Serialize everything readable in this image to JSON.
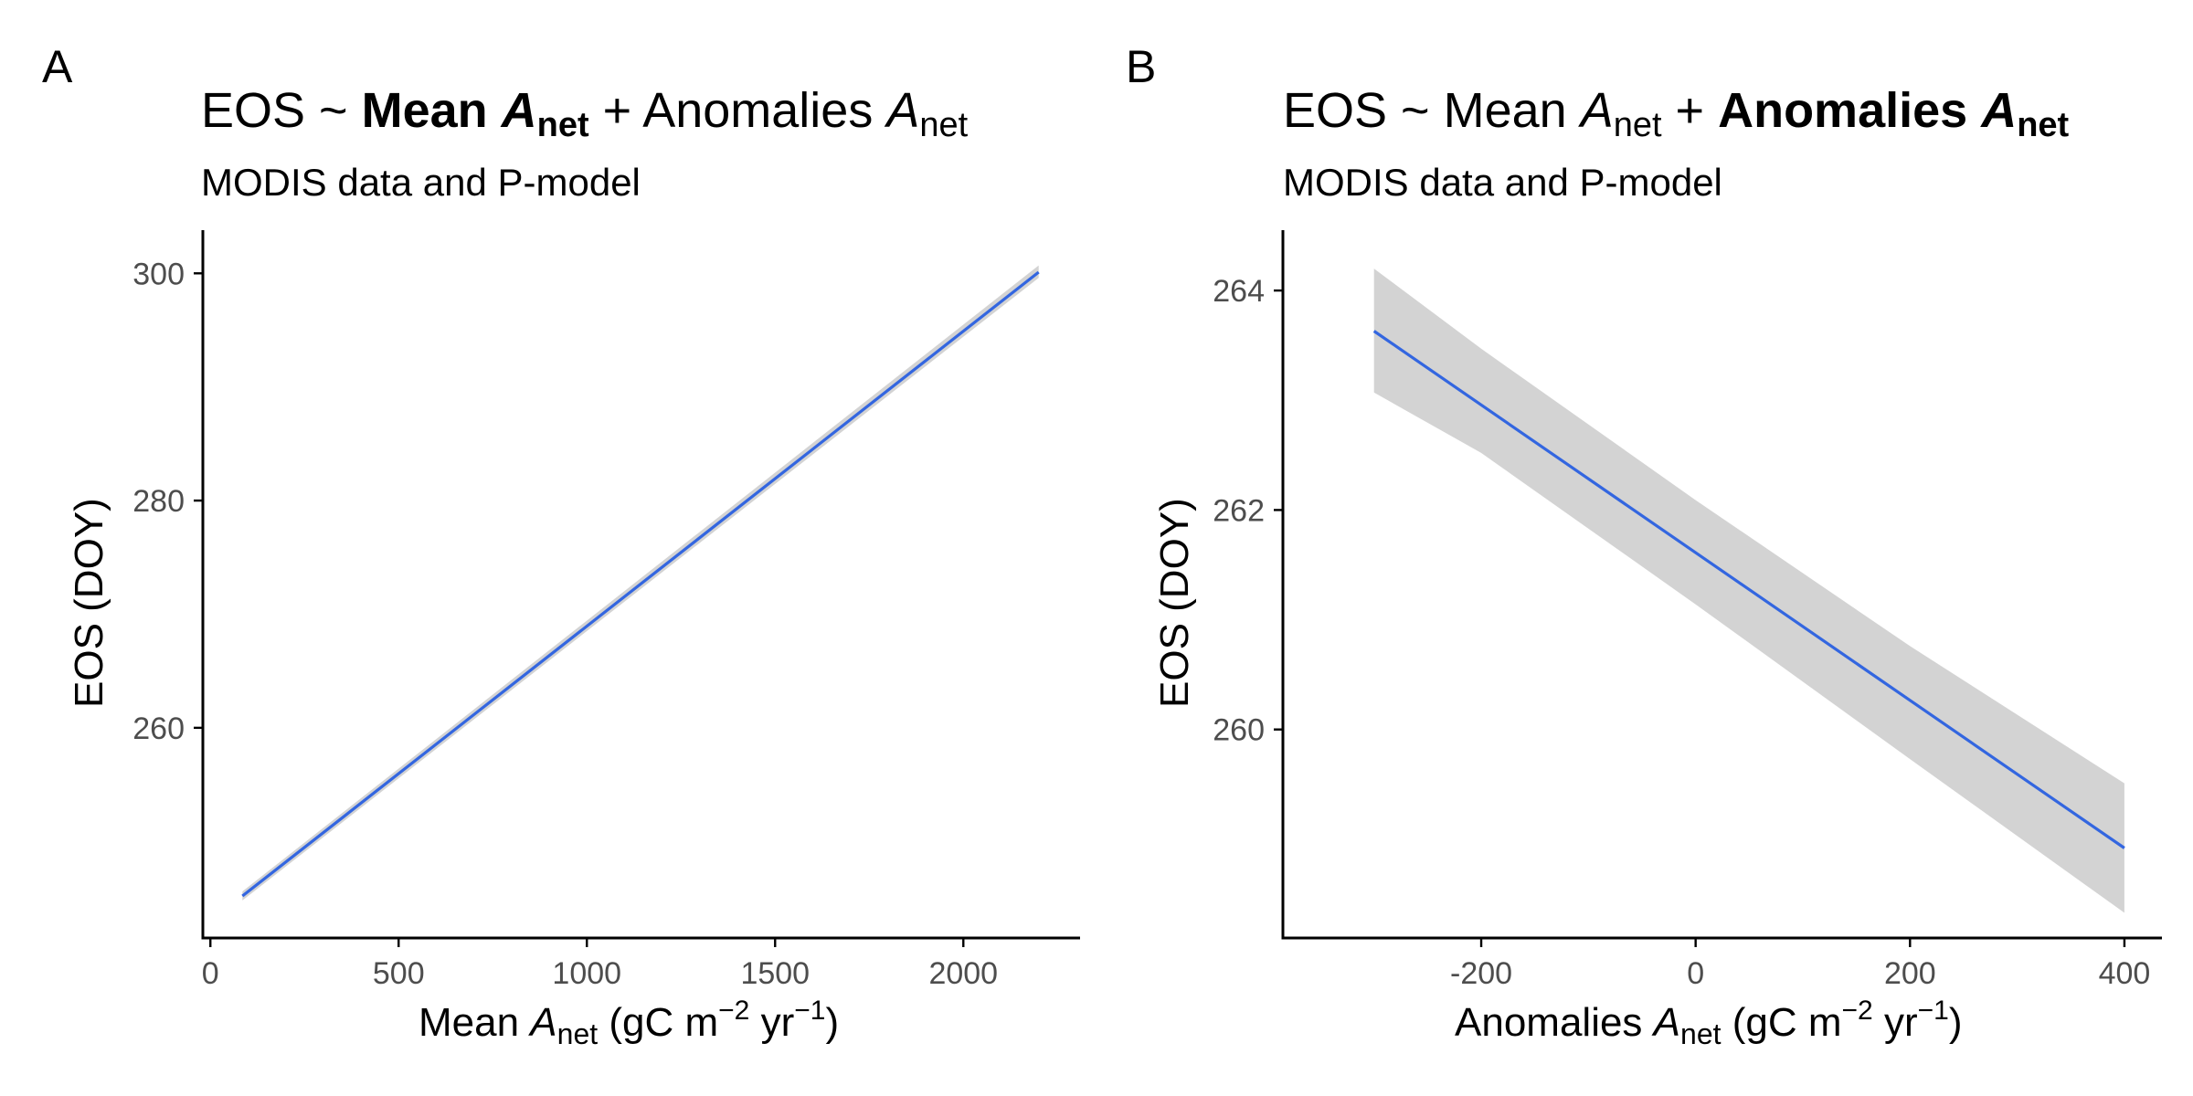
{
  "colors": {
    "line": "#3366e0",
    "ribbon": "#d3d3d3",
    "axis": "#000000",
    "tick_text": "#4d4d4d"
  },
  "panels": [
    {
      "tag": "A",
      "title": {
        "prefix": "EOS ~ ",
        "t1_word": "Mean ",
        "t1_var": "A",
        "t1_sub": "net",
        "plus": " + ",
        "t2_word": "Anomalies ",
        "t2_var": "A",
        "t2_sub": "net",
        "bold_term": 1
      },
      "subtitle": "MODIS data and P-model",
      "xlabel": {
        "pre": "Mean ",
        "var": "A",
        "sub": "net",
        "unit_a": " (gC m",
        "exp1": "−2",
        "unit_b": " yr",
        "exp2": "−1",
        "unit_c": ")"
      },
      "ylabel": "EOS (DOY)"
    },
    {
      "tag": "B",
      "title": {
        "prefix": "EOS ~ ",
        "t1_word": "Mean ",
        "t1_var": "A",
        "t1_sub": "net",
        "plus": " + ",
        "t2_word": "Anomalies ",
        "t2_var": "A",
        "t2_sub": "net",
        "bold_term": 2
      },
      "subtitle": "MODIS data and P-model",
      "xlabel": {
        "pre": "Anomalies ",
        "var": "A",
        "sub": "net",
        "unit_a": " (gC m",
        "exp1": "−2",
        "unit_b": " yr",
        "exp2": "−1",
        "unit_c": ")"
      },
      "ylabel": "EOS (DOY)"
    }
  ],
  "chart_data": [
    {
      "type": "line",
      "series": [
        {
          "x": [
            85,
            2200
          ],
          "y": [
            245.2,
            300.1
          ]
        }
      ],
      "ribbon": {
        "x": [
          85,
          2200
        ],
        "lower": [
          244.8,
          299.6
        ],
        "upper": [
          245.6,
          300.7
        ]
      },
      "xlim": [
        -20,
        2310
      ],
      "ylim": [
        241.5,
        303.8
      ],
      "xticks": [
        0,
        500,
        1000,
        1500,
        2000
      ],
      "xtick_labels": [
        "0",
        "500",
        "1000",
        "1500",
        "2000"
      ],
      "yticks": [
        260,
        280,
        300
      ],
      "ytick_labels": [
        "260",
        "280",
        "300"
      ],
      "grid": false
    },
    {
      "type": "line",
      "series": [
        {
          "x": [
            -300,
            400
          ],
          "y": [
            263.63,
            258.92
          ]
        }
      ],
      "ribbon": {
        "x": [
          -300,
          -200,
          0,
          200,
          400
        ],
        "lower": [
          263.07,
          262.52,
          261.14,
          259.73,
          258.33
        ],
        "upper": [
          264.2,
          263.47,
          262.09,
          260.76,
          259.51
        ]
      },
      "xlim": [
        -385,
        435
      ],
      "ylim": [
        258.1,
        264.55
      ],
      "xticks": [
        -200,
        0,
        200,
        400
      ],
      "xtick_labels": [
        "-200",
        "0",
        "200",
        "400"
      ],
      "yticks": [
        260,
        262,
        264
      ],
      "ytick_labels": [
        "260",
        "262",
        "264"
      ],
      "grid": false
    }
  ]
}
